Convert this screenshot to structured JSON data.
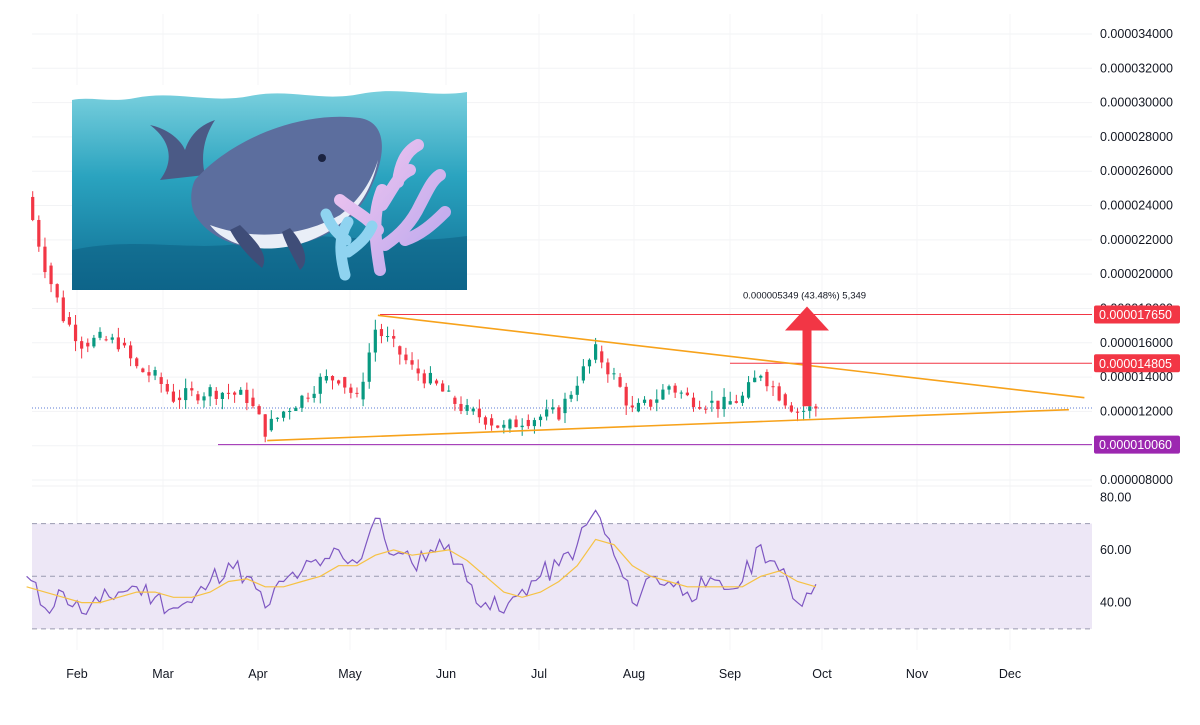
{
  "chart_data": {
    "type": "candlestick",
    "x_tick_labels": [
      "Feb",
      "Mar",
      "Apr",
      "May",
      "Jun",
      "Jul",
      "Aug",
      "Sep",
      "Oct",
      "Nov",
      "Dec"
    ],
    "price_axis": {
      "ylim": [
        8e-06,
        3.4e-05
      ],
      "tick_labels": [
        "0.000034000",
        "0.000032000",
        "0.000030000",
        "0.000028000",
        "0.000026000",
        "0.000024000",
        "0.000022000",
        "0.000020000",
        "0.000018000",
        "0.000016000",
        "0.000014000",
        "0.000012000",
        "0.000010000",
        "0.000008000"
      ],
      "tick_values": [
        3.4e-05,
        3.2e-05,
        3e-05,
        2.8e-05,
        2.6e-05,
        2.4e-05,
        2.2e-05,
        2e-05,
        1.8e-05,
        1.6e-05,
        1.4e-05,
        1.2e-05,
        1e-05,
        8e-06
      ]
    },
    "price_series_close_weekly": [
      2.45e-05,
      2.05e-05,
      1.75e-05,
      1.6e-05,
      1.62e-05,
      1.6e-05,
      1.45e-05,
      1.4e-05,
      1.28e-05,
      1.3e-05,
      1.32e-05,
      1.31e-05,
      1.28e-05,
      1.09e-05,
      1.2e-05,
      1.28e-05,
      1.38e-05,
      1.4e-05,
      1.27e-05,
      1.68e-05,
      1.58e-05,
      1.45e-05,
      1.38e-05,
      1.28e-05,
      1.2e-05,
      1.16e-05,
      1.1e-05,
      1.15e-05,
      1.17e-05,
      1.19e-05,
      1.38e-05,
      1.55e-05,
      1.4e-05,
      1.2e-05,
      1.25e-05,
      1.35e-05,
      1.28e-05,
      1.25e-05,
      1.24e-05,
      1.28e-05,
      1.43e-05,
      1.3e-05,
      1.2e-05,
      1.22e-05
    ],
    "levels": [
      {
        "label": "0.000017650",
        "value": 1.765e-05,
        "color": "#f23645"
      },
      {
        "label": "0.000014805",
        "value": 1.4805e-05,
        "color": "#f23645"
      },
      {
        "label": "0.000010060",
        "value": 1.006e-05,
        "color": "#9c27b0"
      }
    ],
    "trendlines": [
      {
        "role": "upper",
        "from": {
          "date": "2024-05-10",
          "value": 1.76e-05
        },
        "to": {
          "date": "2024-12-25",
          "value": 1.28e-05
        },
        "color": "#f7a21b"
      },
      {
        "role": "lower",
        "from": {
          "date": "2024-04-04",
          "value": 1.03e-05
        },
        "to": {
          "date": "2024-12-20",
          "value": 1.21e-05
        },
        "color": "#f7a21b"
      }
    ],
    "current_price_line": 1.22e-05,
    "measure": {
      "text": "0.000005349 (43.48%) 5,349",
      "from_value": 1.23e-05,
      "to_value": 1.765e-05,
      "color": "#f23645"
    },
    "rsi": {
      "tick_labels": [
        "80.00",
        "60.00",
        "40.00"
      ],
      "tick_values": [
        80,
        60,
        40
      ],
      "ylim": [
        22,
        82
      ],
      "upper_band": 70,
      "middle_band": 50,
      "lower_band": 30,
      "rsi_series_weekly": [
        50,
        38,
        44,
        36,
        40,
        44,
        46,
        42,
        38,
        40,
        48,
        55,
        50,
        38,
        48,
        52,
        54,
        60,
        55,
        72,
        58,
        55,
        60,
        62,
        48,
        40,
        36,
        45,
        50,
        54,
        62,
        75,
        58,
        40,
        50,
        48,
        44,
        46,
        45,
        48,
        62,
        52,
        40,
        47
      ],
      "signal_series_weekly": [
        46,
        44,
        42,
        40,
        40,
        42,
        44,
        44,
        42,
        42,
        44,
        48,
        49,
        46,
        46,
        48,
        50,
        54,
        54,
        58,
        60,
        58,
        59,
        60,
        56,
        50,
        44,
        42,
        44,
        48,
        54,
        64,
        62,
        54,
        50,
        48,
        46,
        46,
        46,
        46,
        50,
        52,
        48,
        46
      ],
      "line_color": "#7e57c2",
      "signal_color": "#f6c244",
      "band_fill": "#ede7f6"
    },
    "colors": {
      "up": "#089981",
      "down": "#f23645"
    }
  },
  "overlay_image": {
    "icon": "whale-and-coral-illustration"
  }
}
